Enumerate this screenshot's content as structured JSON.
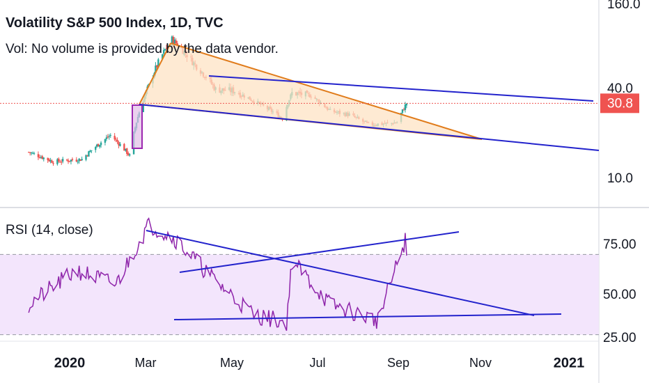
{
  "header": {
    "title": "Volatility S&P 500 Index, 1D, TVC",
    "volume_note": "Vol: No volume is provided by the data vendor."
  },
  "rsi_panel": {
    "label": "RSI (14, close)"
  },
  "price_badge": {
    "value": "30.8",
    "color": "#ef5350"
  },
  "colors": {
    "candle_up": "#26a69a",
    "candle_down": "#ef5350",
    "trend_line": "#2222cc",
    "wedge_stroke": "#e07b1a",
    "wedge_fill": "#fde3c4",
    "breakout_box": "#9c27b0",
    "rsi_line": "#8e24aa",
    "rsi_band": "#f3e5fc",
    "current_price_line": "#ef5350"
  },
  "chart_data": [
    {
      "type": "candlestick",
      "title": "Volatility S&P 500 Index, 1D, TVC",
      "y_scale": "log",
      "y_ticks": [
        "160.0",
        "40.0",
        "10.0"
      ],
      "x_ticks": [
        "2020",
        "Mar",
        "May",
        "Jul",
        "Sep",
        "Nov",
        "2021"
      ],
      "current_value": 30.8,
      "approx_path": [
        {
          "date": "2019-12-02",
          "close": 14.5
        },
        {
          "date": "2019-12-20",
          "close": 12.5
        },
        {
          "date": "2020-01-10",
          "close": 13.0
        },
        {
          "date": "2020-01-31",
          "close": 18.8
        },
        {
          "date": "2020-02-14",
          "close": 13.7
        },
        {
          "date": "2020-02-28",
          "close": 40.1
        },
        {
          "date": "2020-03-16",
          "close": 82.7
        },
        {
          "date": "2020-04-01",
          "close": 57.1
        },
        {
          "date": "2020-04-17",
          "close": 38.2
        },
        {
          "date": "2020-05-01",
          "close": 37.2
        },
        {
          "date": "2020-05-15",
          "close": 31.9
        },
        {
          "date": "2020-06-05",
          "close": 24.5
        },
        {
          "date": "2020-06-12",
          "close": 36.1
        },
        {
          "date": "2020-06-26",
          "close": 34.7
        },
        {
          "date": "2020-07-10",
          "close": 27.3
        },
        {
          "date": "2020-07-24",
          "close": 25.8
        },
        {
          "date": "2020-08-07",
          "close": 22.2
        },
        {
          "date": "2020-08-21",
          "close": 22.5
        },
        {
          "date": "2020-08-28",
          "close": 22.9
        },
        {
          "date": "2020-09-04",
          "close": 30.8
        }
      ]
    },
    {
      "type": "line",
      "title": "RSI (14, close)",
      "y_ticks": [
        "75.00",
        "50.00",
        "25.00"
      ],
      "band": [
        30,
        70
      ],
      "approx_path": [
        {
          "date": "2019-12-02",
          "rsi": 45
        },
        {
          "date": "2020-01-06",
          "rsi": 62
        },
        {
          "date": "2020-02-04",
          "rsi": 55
        },
        {
          "date": "2020-02-28",
          "rsi": 85
        },
        {
          "date": "2020-03-18",
          "rsi": 78
        },
        {
          "date": "2020-04-15",
          "rsi": 58
        },
        {
          "date": "2020-05-15",
          "rsi": 40
        },
        {
          "date": "2020-06-08",
          "rsi": 36
        },
        {
          "date": "2020-06-12",
          "rsi": 67
        },
        {
          "date": "2020-07-10",
          "rsi": 45
        },
        {
          "date": "2020-08-14",
          "rsi": 37
        },
        {
          "date": "2020-09-03",
          "rsi": 77
        },
        {
          "date": "2020-09-04",
          "rsi": 68
        }
      ]
    }
  ]
}
